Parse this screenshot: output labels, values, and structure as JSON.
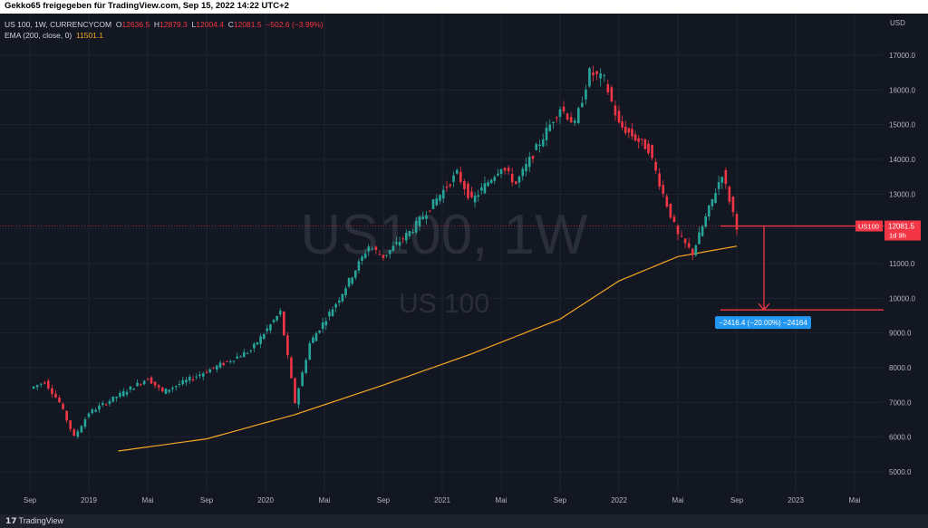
{
  "header": {
    "title": "Gekko65 freigegeben für TradingView.com, Sep 15, 2022 14:22 UTC+2"
  },
  "footer": {
    "brand": "TradingView"
  },
  "legend": {
    "symbol": "US 100, 1W, CURRENCYCOM",
    "o_label": "O",
    "o_value": "12636.5",
    "h_label": "H",
    "h_value": "12879.3",
    "l_label": "L",
    "l_value": "12004.4",
    "c_label": "C",
    "c_value": "12081.5",
    "change": "−502.6 (−3.99%)",
    "ema_label": "EMA (200, close, 0)",
    "ema_value": "11501.1"
  },
  "watermark": {
    "main": "US100, 1W",
    "sub": "US 100"
  },
  "axis": {
    "currency": "USD",
    "price_ticks": [
      "17000.0",
      "16000.0",
      "15000.0",
      "14000.0",
      "13000.0",
      "12000.0",
      "11000.0",
      "10000.0",
      "9000.0",
      "8000.0",
      "7000.0",
      "6000.0",
      "5000.0"
    ],
    "time_ticks": [
      "Sep",
      "2019",
      "Mai",
      "Sep",
      "2020",
      "Mai",
      "Sep",
      "2021",
      "Mai",
      "Sep",
      "2022",
      "Mai",
      "Sep",
      "2023",
      "Mai"
    ]
  },
  "price_tag": {
    "symbol": "US100",
    "value": "12081.5",
    "countdown": "1d 9h"
  },
  "measure": {
    "label": "−2416.4 (−20.00%) −24164"
  },
  "colors": {
    "up": "#26a69a",
    "down": "#f23645",
    "ema": "#f5a623",
    "measure": "#2196f3"
  },
  "chart_data": {
    "type": "candlestick",
    "interval": "1W",
    "ylim": [
      4700,
      17800
    ],
    "series": [
      {
        "name": "US 100",
        "keypoints": [
          [
            "2018-09",
            7400
          ],
          [
            "2018-10",
            7600
          ],
          [
            "2018-11",
            7000
          ],
          [
            "2018-12",
            6000
          ],
          [
            "2019-01",
            6700
          ],
          [
            "2019-05",
            7700
          ],
          [
            "2019-06",
            7300
          ],
          [
            "2019-09",
            7900
          ],
          [
            "2019-12",
            8500
          ],
          [
            "2020-02",
            9600
          ],
          [
            "2020-03",
            7000
          ],
          [
            "2020-04",
            8700
          ],
          [
            "2020-06",
            10000
          ],
          [
            "2020-08",
            11500
          ],
          [
            "2020-09",
            11200
          ],
          [
            "2020-11",
            12000
          ],
          [
            "2021-02",
            13600
          ],
          [
            "2021-03",
            12800
          ],
          [
            "2021-05",
            13800
          ],
          [
            "2021-06",
            13300
          ],
          [
            "2021-09",
            15500
          ],
          [
            "2021-10",
            15000
          ],
          [
            "2021-11",
            16500
          ],
          [
            "2021-12",
            16300
          ],
          [
            "2022-01",
            15000
          ],
          [
            "2022-03",
            14300
          ],
          [
            "2022-04",
            13000
          ],
          [
            "2022-05",
            11800
          ],
          [
            "2022-06",
            11300
          ],
          [
            "2022-08",
            13600
          ],
          [
            "2022-09",
            12081.5
          ]
        ]
      },
      {
        "name": "EMA (200, close, 0)",
        "keypoints": [
          [
            "2019-03",
            5600
          ],
          [
            "2019-09",
            5950
          ],
          [
            "2020-03",
            6650
          ],
          [
            "2020-09",
            7500
          ],
          [
            "2021-03",
            8400
          ],
          [
            "2021-09",
            9400
          ],
          [
            "2022-01",
            10500
          ],
          [
            "2022-05",
            11200
          ],
          [
            "2022-09",
            11501.1
          ]
        ]
      }
    ],
    "measurement": {
      "from": 12081.5,
      "to": 9665.1,
      "change": -2416.4,
      "percent": -20.0
    }
  }
}
